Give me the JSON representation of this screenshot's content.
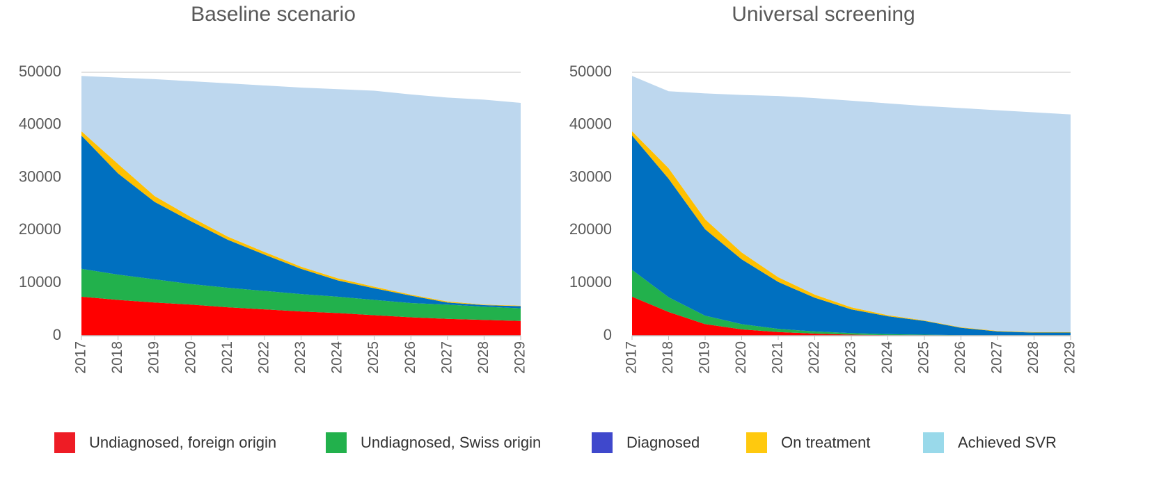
{
  "legend": [
    {
      "name": "Undiagnosed, foreign origin",
      "color": "#ff0000",
      "swatch_color": "#ee1c25"
    },
    {
      "name": "Undiagnosed, Swiss origin",
      "color": "#22b14c",
      "swatch_color": "#22b14c"
    },
    {
      "name": "Diagnosed",
      "color": "#0070c0",
      "swatch_color": "#3f48cc"
    },
    {
      "name": "On treatment",
      "color": "#ffc000",
      "swatch_color": "#ffc90e"
    },
    {
      "name": "Achieved SVR",
      "color": "#bdd7ee",
      "swatch_color": "#99d9ea"
    }
  ],
  "chart_data": [
    {
      "type": "area",
      "stacked": true,
      "title": "Baseline scenario",
      "categories": [
        "2017",
        "2018",
        "2019",
        "2020",
        "2021",
        "2022",
        "2023",
        "2024",
        "2025",
        "2026",
        "2027",
        "2028",
        "2029"
      ],
      "series": [
        {
          "values": [
            7400,
            6800,
            6300,
            5900,
            5400,
            5000,
            4600,
            4300,
            3900,
            3500,
            3200,
            3000,
            2800
          ]
        },
        {
          "values": [
            5300,
            4800,
            4400,
            3900,
            3700,
            3500,
            3300,
            3100,
            2900,
            2700,
            2700,
            2500,
            2400
          ]
        },
        {
          "values": [
            25300,
            19200,
            14700,
            11900,
            9100,
            6900,
            4800,
            3100,
            2200,
            1400,
            400,
            300,
            400
          ]
        },
        {
          "values": [
            800,
            1800,
            1100,
            800,
            600,
            500,
            400,
            400,
            300,
            200,
            200,
            100,
            100
          ]
        },
        {
          "values": [
            10500,
            16400,
            22200,
            25800,
            29100,
            31600,
            34000,
            35900,
            37200,
            38000,
            38700,
            38900,
            38500
          ]
        }
      ],
      "ylim": [
        0,
        50000
      ],
      "yticks": [
        0,
        10000,
        20000,
        30000,
        40000,
        50000
      ],
      "grid": true
    },
    {
      "type": "area",
      "stacked": true,
      "title": "Universal screening",
      "categories": [
        "2017",
        "2018",
        "2019",
        "2020",
        "2021",
        "2022",
        "2023",
        "2024",
        "2025",
        "2026",
        "2027",
        "2028",
        "2029"
      ],
      "series": [
        {
          "values": [
            7400,
            4500,
            2200,
            1200,
            700,
            400,
            200,
            100,
            100,
            50,
            0,
            0,
            0
          ]
        },
        {
          "values": [
            5100,
            2800,
            1600,
            1000,
            600,
            400,
            300,
            200,
            100,
            50,
            100,
            100,
            100
          ]
        },
        {
          "values": [
            25500,
            22500,
            16400,
            12300,
            8900,
            6400,
            4500,
            3400,
            2600,
            1400,
            700,
            500,
            500
          ]
        },
        {
          "values": [
            800,
            2000,
            1900,
            1300,
            900,
            600,
            400,
            200,
            100,
            100,
            100,
            100,
            100
          ]
        },
        {
          "values": [
            10500,
            14600,
            23900,
            29900,
            34400,
            37300,
            39200,
            40200,
            40700,
            41600,
            41900,
            41700,
            41300
          ]
        }
      ],
      "ylim": [
        0,
        50000
      ],
      "yticks": [
        0,
        10000,
        20000,
        30000,
        40000,
        50000
      ],
      "grid": true
    }
  ]
}
